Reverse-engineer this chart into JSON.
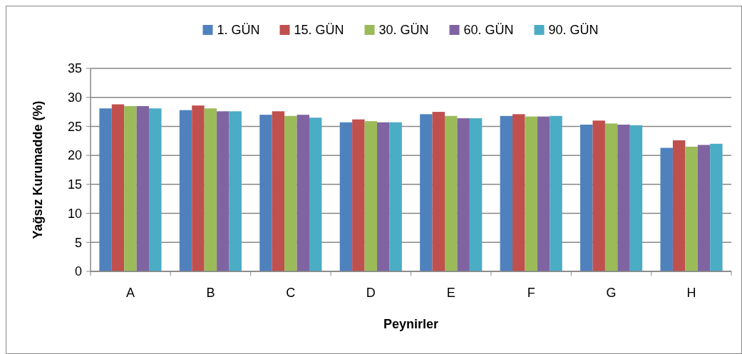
{
  "chart_data": {
    "type": "bar",
    "xlabel": "Peynirler",
    "ylabel": "Yağsız Kurumadde (%)",
    "categories": [
      "A",
      "B",
      "C",
      "D",
      "E",
      "F",
      "G",
      "H"
    ],
    "series": [
      {
        "name": "1. GÜN",
        "color": "#4f81bd",
        "values": [
          28.1,
          27.8,
          27.0,
          25.7,
          27.1,
          26.8,
          25.3,
          21.3
        ]
      },
      {
        "name": "15. GÜN",
        "color": "#c0504d",
        "values": [
          28.8,
          28.6,
          27.6,
          26.2,
          27.5,
          27.1,
          26.0,
          22.6
        ]
      },
      {
        "name": "30. GÜN",
        "color": "#9bbb59",
        "values": [
          28.5,
          28.1,
          26.8,
          25.9,
          26.8,
          26.7,
          25.5,
          21.5
        ]
      },
      {
        "name": "60. GÜN",
        "color": "#8064a2",
        "values": [
          28.5,
          27.6,
          27.0,
          25.7,
          26.4,
          26.7,
          25.3,
          21.8
        ]
      },
      {
        "name": "90. GÜN",
        "color": "#4bacc6",
        "values": [
          28.1,
          27.6,
          26.5,
          25.7,
          26.4,
          26.8,
          25.2,
          22.0
        ]
      }
    ],
    "ylim": [
      0,
      35
    ],
    "yticks": [
      0,
      5,
      10,
      15,
      20,
      25,
      30,
      35
    ],
    "grid": "y",
    "legend": "top"
  }
}
